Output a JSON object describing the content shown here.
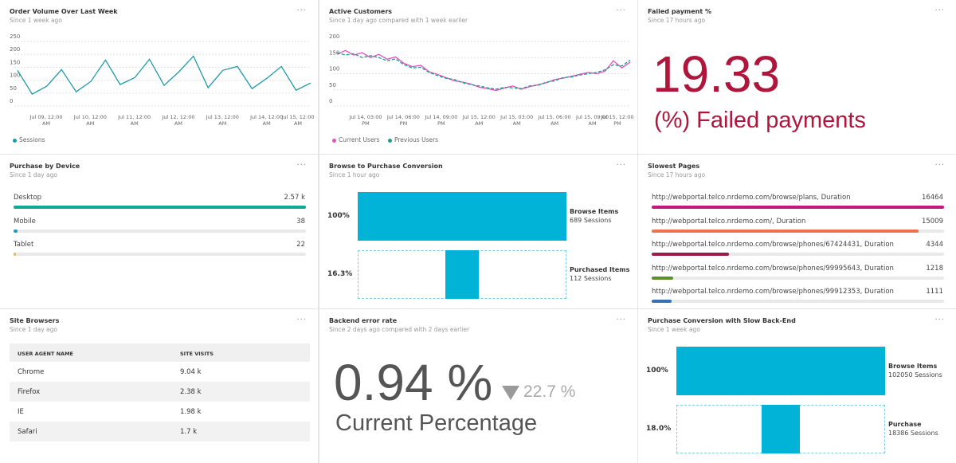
{
  "widgets": [
    {
      "type": "line",
      "title": "Order Volume Over Last Week",
      "subtitle": "Since 1 week ago",
      "ylim": [
        0,
        250
      ],
      "yticks": [
        0,
        50,
        100,
        150,
        200,
        250
      ],
      "grid": true,
      "xticks": [
        "Jul 09, 12:00 AM",
        "Jul 10, 12:00 AM",
        "Jul 11, 12:00 AM",
        "Jul 12, 12:00 AM",
        "Jul 13, 12:00 AM",
        "Jul 14, 12:00 AM",
        "Jul 15, 12:00 AM"
      ],
      "series": [
        {
          "name": "Sessions",
          "color": "#1f9ba6",
          "values": [
            138,
            46,
            77,
            141,
            55,
            95,
            178,
            83,
            110,
            181,
            80,
            132,
            193,
            71,
            138,
            153,
            67,
            107,
            153,
            61,
            89
          ]
        }
      ]
    },
    {
      "type": "line",
      "title": "Active Customers",
      "subtitle": "Since 1 day ago compared with 1 week earlier",
      "ylim": [
        0,
        200
      ],
      "yticks": [
        0,
        50,
        100,
        150,
        200
      ],
      "grid": true,
      "xticks": [
        "Jul 14, 03:00 PM",
        "Jul 14, 06:00 PM",
        "Jul 14, 09:00 PM",
        "Jul 15, 12:00 AM",
        "Jul 15, 03:00 AM",
        "Jul 15, 06:00 AM",
        "Jul 15, 09:00 AM",
        "Jul 15, 12:00 PM"
      ],
      "series": [
        {
          "name": "Current Users",
          "color": "#e052c2",
          "dash": false,
          "values": [
            160,
            172,
            158,
            165,
            150,
            160,
            145,
            152,
            132,
            122,
            126,
            106,
            98,
            88,
            78,
            74,
            68,
            58,
            54,
            48,
            56,
            62,
            52,
            60,
            66,
            72,
            82,
            86,
            92,
            98,
            104,
            100,
            108,
            140,
            118,
            136
          ]
        },
        {
          "name": "Previous Users",
          "color": "#1f9b8a",
          "dash": true,
          "values": [
            165,
            158,
            162,
            150,
            156,
            150,
            140,
            146,
            128,
            118,
            120,
            104,
            94,
            86,
            82,
            72,
            66,
            62,
            56,
            52,
            58,
            56,
            54,
            62,
            64,
            74,
            78,
            88,
            90,
            96,
            100,
            104,
            112,
            128,
            124,
            142
          ]
        }
      ]
    },
    {
      "type": "stat",
      "title": "Failed payment %",
      "subtitle": "Since 17 hours ago",
      "value": "19.33",
      "caption": "(%) Failed payments"
    },
    {
      "type": "bars",
      "title": "Purchase by Device",
      "subtitle": "Since 1 day ago",
      "rows": [
        {
          "name": "Desktop",
          "value": 2570,
          "value_label": "2.57 k",
          "color": "#11a893"
        },
        {
          "name": "Mobile",
          "value": 38,
          "value_label": "38",
          "color": "#1f9bbf"
        },
        {
          "name": "Tablet",
          "value": 22,
          "value_label": "22",
          "color": "#f5b835"
        }
      ]
    },
    {
      "type": "funnel",
      "title": "Browse to Purchase Conversion",
      "subtitle": "Since 1 hour ago",
      "color": "#00b3d7",
      "steps": [
        {
          "name": "Browse Items",
          "value": 689,
          "value_label": "689 Sessions",
          "percent": "100%"
        },
        {
          "name": "Purchased Items",
          "value": 112,
          "value_label": "112 Sessions",
          "percent": "16.3%"
        }
      ]
    },
    {
      "type": "bars",
      "title": "Slowest Pages",
      "subtitle": "Since 17 hours ago",
      "rows": [
        {
          "name": "http://webportal.telco.nrdemo.com/browse/plans, Duration",
          "value": 16464,
          "color": "#c2197c"
        },
        {
          "name": "http://webportal.telco.nrdemo.com/, Duration",
          "value": 15009,
          "color": "#ea7450"
        },
        {
          "name": "http://webportal.telco.nrdemo.com/browse/phones/67424431, Duration",
          "value": 4344,
          "color": "#9a1a4a"
        },
        {
          "name": "http://webportal.telco.nrdemo.com/browse/phones/99995643, Duration",
          "value": 1218,
          "color": "#5d8f2e"
        },
        {
          "name": "http://webportal.telco.nrdemo.com/browse/phones/99912353, Duration",
          "value": 1111,
          "color": "#3a6fb0"
        }
      ]
    },
    {
      "type": "table",
      "title": "Site Browsers",
      "subtitle": "Since 1 day ago",
      "columns": [
        "USER AGENT NAME",
        "SITE VISITS"
      ],
      "rows": [
        [
          "Chrome",
          "9.04 k"
        ],
        [
          "Firefox",
          "2.38 k"
        ],
        [
          "IE",
          "1.98 k"
        ],
        [
          "Safari",
          "1.7 k"
        ]
      ]
    },
    {
      "type": "compare",
      "title": "Backend error rate",
      "subtitle": "Since 2 days ago compared with 2 days earlier",
      "value": "0.94 %",
      "change": "22.7 %",
      "caption": "Current Percentage"
    },
    {
      "type": "funnel",
      "title": "Purchase Conversion with Slow Back-End",
      "subtitle": "Since 1 week ago",
      "color": "#00b3d7",
      "steps": [
        {
          "name": "Browse Items",
          "value": 102050,
          "value_label": "102050 Sessions",
          "percent": "100%"
        },
        {
          "name": "Purchase",
          "value": 18386,
          "value_label": "18386 Sessions",
          "percent": "18.0%"
        }
      ]
    }
  ]
}
